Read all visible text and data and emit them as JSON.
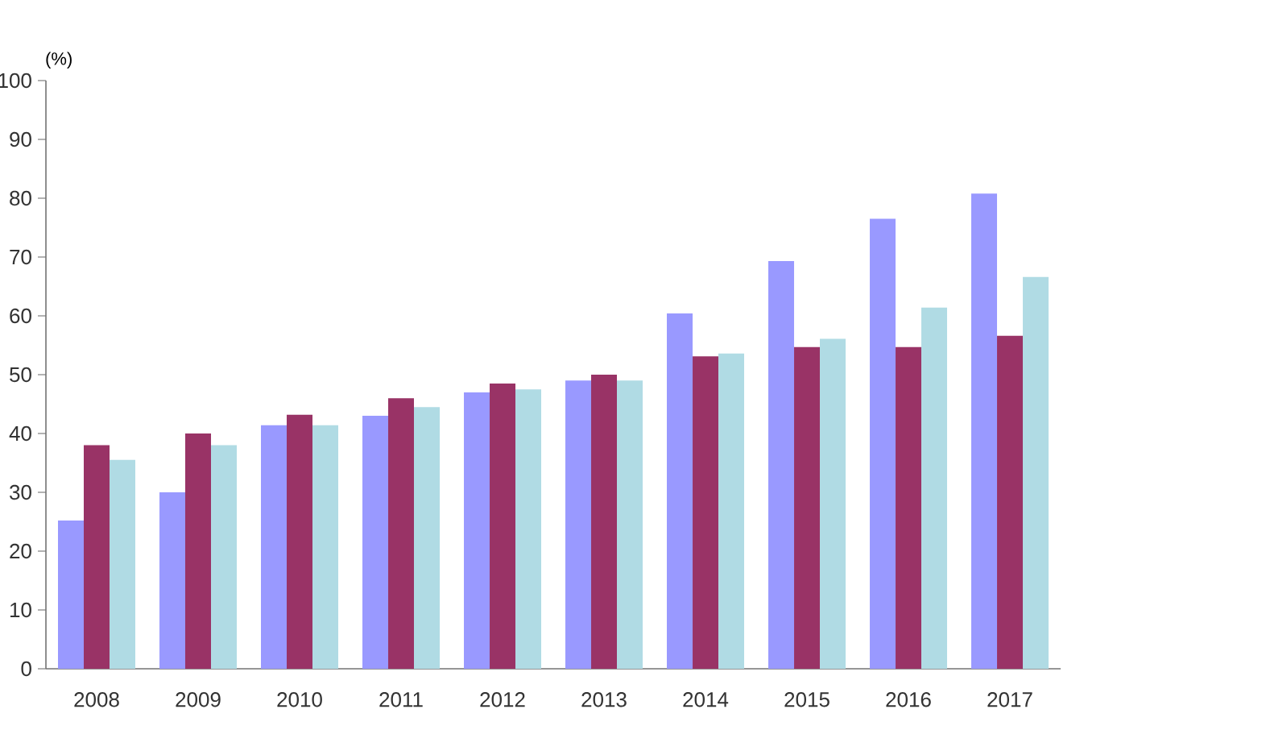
{
  "chart_data": {
    "type": "bar",
    "ylabel": "(%)",
    "categories": [
      "2008",
      "2009",
      "2010",
      "2011",
      "2012",
      "2013",
      "2014",
      "2015",
      "2016",
      "2017"
    ],
    "series": [
      {
        "color": "#9999ff",
        "values": [
          25.2,
          30,
          41.4,
          43,
          47,
          49,
          60.4,
          69.3,
          76.5,
          80.8
        ]
      },
      {
        "color": "#993366",
        "values": [
          38,
          40,
          43.2,
          46,
          48.5,
          50,
          53.1,
          54.7,
          54.7,
          56.6
        ]
      },
      {
        "color": "#b0dbe4",
        "values": [
          35.5,
          38,
          41.4,
          44.5,
          47.5,
          49,
          53.6,
          56.1,
          61.4,
          66.6
        ]
      }
    ],
    "ylim": [
      0,
      100
    ],
    "yticks": [
      0,
      10,
      20,
      30,
      40,
      50,
      60,
      70,
      80,
      90,
      100
    ],
    "grid": false
  }
}
